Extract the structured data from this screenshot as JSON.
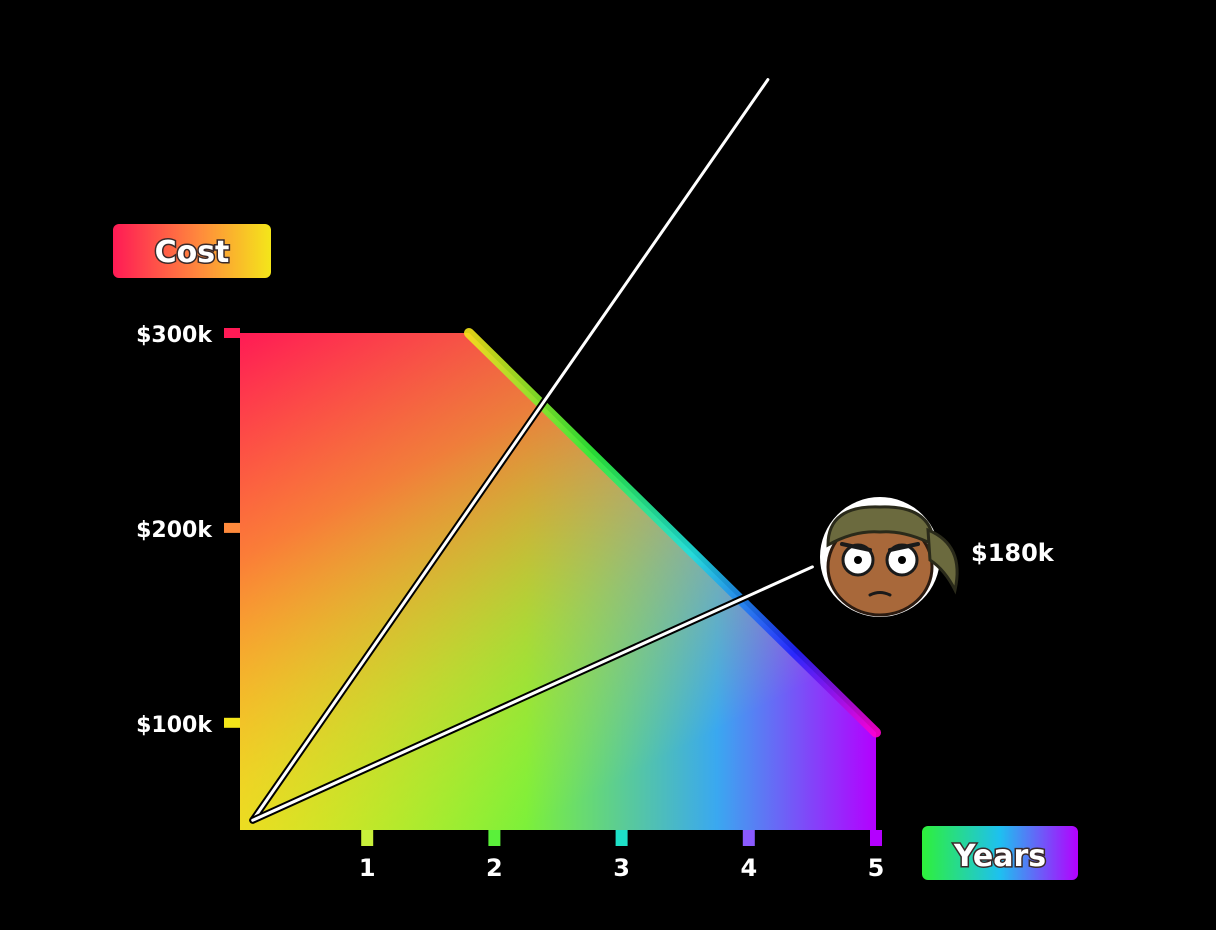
{
  "chart_data": {
    "type": "line",
    "title": "",
    "ylabel": "Cost",
    "xlabel": "Years",
    "x_ticks": [
      "1",
      "2",
      "3",
      "4",
      "5"
    ],
    "y_ticks": [
      {
        "value": 100000,
        "label": "$100k"
      },
      {
        "value": 200000,
        "label": "$200k"
      },
      {
        "value": 300000,
        "label": "$300k"
      }
    ],
    "xlim": [
      0,
      5
    ],
    "ylim": [
      45000,
      300000
    ],
    "grid": false,
    "series": [
      {
        "values": [
          {
            "x": 0.1,
            "y": 50000
          },
          {
            "x": 4.15,
            "y": 430000
          }
        ]
      },
      {
        "values": [
          {
            "x": 0.1,
            "y": 50000
          },
          {
            "x": 4.5,
            "y": 180000
          }
        ]
      }
    ],
    "background_region": [
      {
        "x": 0,
        "y": 300000
      },
      {
        "x": 1.8,
        "y": 300000
      },
      {
        "x": 5,
        "y": 95000
      },
      {
        "x": 5,
        "y": 45000
      },
      {
        "x": 0,
        "y": 45000
      }
    ],
    "annotation": {
      "label": "$180k",
      "icon": "worried-face-headband-icon",
      "x": 4.5,
      "y": 180000
    },
    "colors": {
      "red": "#ff1a55",
      "orange": "#ff8a3c",
      "yellow": "#f4e61a",
      "green": "#2ef03a",
      "cyan": "#1ee0e0",
      "blue": "#2222ff",
      "violet": "#b400ff",
      "magenta": "#ff00d0"
    }
  }
}
